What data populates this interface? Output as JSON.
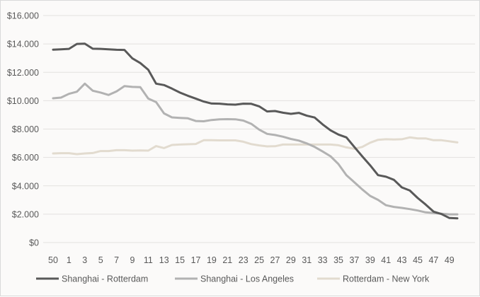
{
  "chart_data": {
    "type": "line",
    "title": "",
    "xlabel": "",
    "ylabel": "",
    "ylim": [
      0,
      16000
    ],
    "yticks": [
      0,
      2000,
      4000,
      6000,
      8000,
      10000,
      12000,
      14000,
      16000
    ],
    "ytick_labels": [
      "$0",
      "$2.000",
      "$4.000",
      "$6.000",
      "$8.000",
      "$10.000",
      "$12.000",
      "$14.000",
      "$16.000"
    ],
    "grid": "horizontal",
    "legend_position": "bottom",
    "x": [
      "50",
      "51",
      "1",
      "2",
      "3",
      "4",
      "5",
      "6",
      "7",
      "8",
      "9",
      "10",
      "11",
      "12",
      "13",
      "14",
      "15",
      "16",
      "17",
      "18",
      "19",
      "20",
      "21",
      "22",
      "23",
      "24",
      "25",
      "26",
      "27",
      "28",
      "29",
      "30",
      "31",
      "32",
      "33",
      "34",
      "35",
      "36",
      "37",
      "38",
      "39",
      "40",
      "41",
      "42",
      "43",
      "44",
      "45",
      "46",
      "47",
      "48",
      "49",
      "50"
    ],
    "xtick_labels": [
      "50",
      "1",
      "3",
      "5",
      "7",
      "9",
      "11",
      "13",
      "15",
      "17",
      "19",
      "21",
      "23",
      "25",
      "27",
      "29",
      "31",
      "33",
      "35",
      "37",
      "39",
      "41",
      "43",
      "45",
      "47",
      "49"
    ],
    "series": [
      {
        "name": "Shanghai - Rotterdam",
        "color": "#595959",
        "values": [
          13600,
          13620,
          13650,
          14000,
          14020,
          13660,
          13650,
          13620,
          13590,
          13580,
          12980,
          12650,
          12180,
          11200,
          11100,
          10850,
          10570,
          10350,
          10150,
          9940,
          9800,
          9790,
          9740,
          9720,
          9790,
          9780,
          9600,
          9240,
          9270,
          9150,
          9070,
          9140,
          8940,
          8810,
          8330,
          7910,
          7610,
          7410,
          6740,
          6080,
          5450,
          4750,
          4640,
          4420,
          3890,
          3670,
          3140,
          2680,
          2180,
          2010,
          1730,
          1710
        ]
      },
      {
        "name": "Shanghai - Los Angeles",
        "color": "#b2b2b2",
        "values": [
          10170,
          10220,
          10480,
          10630,
          11200,
          10700,
          10570,
          10400,
          10650,
          11030,
          10970,
          10950,
          10150,
          9900,
          9100,
          8820,
          8790,
          8760,
          8570,
          8550,
          8640,
          8690,
          8700,
          8690,
          8600,
          8370,
          7960,
          7660,
          7580,
          7460,
          7300,
          7190,
          6990,
          6740,
          6420,
          6080,
          5530,
          4750,
          4250,
          3750,
          3290,
          3010,
          2630,
          2510,
          2440,
          2360,
          2260,
          2130,
          2080,
          2030,
          1990,
          1990
        ]
      },
      {
        "name": "Rotterdam - New York",
        "color": "#e2dbcf",
        "values": [
          6280,
          6300,
          6300,
          6230,
          6280,
          6310,
          6450,
          6450,
          6510,
          6510,
          6480,
          6490,
          6480,
          6800,
          6660,
          6880,
          6910,
          6930,
          6950,
          7210,
          7210,
          7200,
          7200,
          7200,
          7110,
          6940,
          6850,
          6780,
          6790,
          6910,
          6910,
          6910,
          6910,
          6910,
          6910,
          6910,
          6860,
          6710,
          6610,
          6740,
          7040,
          7240,
          7280,
          7260,
          7280,
          7410,
          7340,
          7340,
          7210,
          7210,
          7140,
          7060
        ]
      }
    ]
  }
}
